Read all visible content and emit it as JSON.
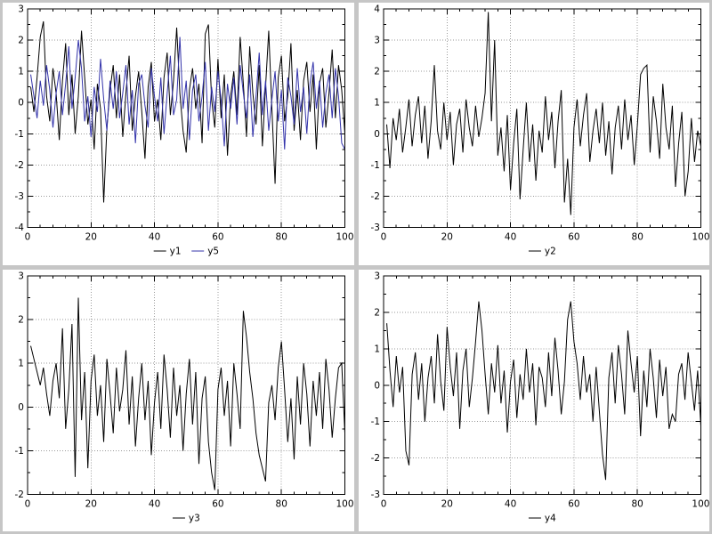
{
  "chart_data": [
    {
      "type": "line",
      "title": "",
      "xlabel": "",
      "ylabel": "",
      "xlim": [
        0,
        100
      ],
      "ylim": [
        -4,
        3
      ],
      "xticks": [
        0,
        20,
        40,
        60,
        80,
        100
      ],
      "yticks": [
        -4,
        -3,
        -2,
        -1,
        0,
        1,
        2,
        3
      ],
      "grid": "dotted",
      "legend_position": "bottom",
      "x": {
        "start": 1,
        "step": 1
      },
      "legend": [
        {
          "label": "y1",
          "color": "#000000"
        },
        {
          "label": "y5",
          "color": "#3333aa"
        }
      ],
      "series": [
        {
          "name": "y1",
          "color": "#000000",
          "values": [
            0.5,
            -0.3,
            0.8,
            2.1,
            2.6,
            0.2,
            -0.6,
            1.1,
            0.3,
            -1.2,
            0.7,
            1.9,
            -0.4,
            0.9,
            -1.0,
            0.2,
            2.3,
            0.8,
            -0.7,
            0.1,
            -1.5,
            0.6,
            -0.2,
            -3.2,
            -0.8,
            0.4,
            1.2,
            -0.5,
            0.9,
            -1.1,
            0.3,
            1.5,
            -0.9,
            0.2,
            1.0,
            -0.3,
            -1.8,
            0.5,
            1.3,
            -0.6,
            0.1,
            -1.2,
            0.8,
            1.6,
            -0.4,
            0.7,
            2.4,
            0.3,
            -0.9,
            -1.6,
            0.4,
            1.1,
            -0.2,
            0.6,
            -1.3,
            2.2,
            2.5,
            0.1,
            -0.8,
            1.4,
            -0.5,
            0.9,
            -1.7,
            0.2,
            1.0,
            -0.4,
            2.1,
            0.6,
            -1.1,
            1.8,
            0.3,
            -0.7,
            1.2,
            -1.4,
            0.5,
            2.3,
            -0.2,
            -2.6,
            0.8,
            1.5,
            -0.6,
            0.2,
            1.9,
            -0.9,
            0.4,
            -1.2,
            0.7,
            1.3,
            -0.3,
            0.9,
            -1.5,
            0.6,
            1.1,
            -0.8,
            0.3,
            1.7,
            -0.5,
            1.2,
            0.4,
            -1.0
          ]
        },
        {
          "name": "y5",
          "color": "#3333aa",
          "values": [
            0.9,
            0.2,
            -0.5,
            0.7,
            -0.1,
            1.2,
            0.4,
            -0.8,
            0.3,
            1.0,
            -0.4,
            0.6,
            1.8,
            -0.2,
            0.8,
            2.0,
            1.1,
            -0.6,
            0.2,
            -1.1,
            0.5,
            -0.3,
            1.4,
            0.1,
            -0.9,
            0.7,
            -0.2,
            1.0,
            -0.5,
            0.3,
            1.2,
            -0.7,
            0.4,
            -1.3,
            0.6,
            0.9,
            -0.1,
            -0.8,
            1.1,
            0.2,
            -0.6,
            0.8,
            -1.0,
            0.3,
            1.5,
            -0.4,
            0.1,
            2.1,
            -0.2,
            0.7,
            -1.2,
            0.4,
            0.9,
            -0.6,
            0.2,
            1.3,
            -0.9,
            0.5,
            -0.3,
            1.0,
            0.1,
            -1.4,
            0.6,
            -0.2,
            0.8,
            -0.7,
            1.2,
            0.3,
            -0.5,
            0.9,
            -1.1,
            0.2,
            1.6,
            -0.4,
            0.7,
            -0.9,
            0.1,
            1.0,
            -0.6,
            0.4,
            -1.5,
            0.8,
            0.2,
            -0.7,
            1.1,
            -0.3,
            0.5,
            -1.0,
            0.6,
            1.3,
            -0.2,
            0.7,
            -0.8,
            0.3,
            0.9,
            -0.5,
            1.1,
            0.2,
            -1.3,
            -1.5
          ]
        }
      ]
    },
    {
      "type": "line",
      "title": "",
      "xlabel": "",
      "ylabel": "",
      "xlim": [
        0,
        100
      ],
      "ylim": [
        -3,
        4
      ],
      "xticks": [
        0,
        20,
        40,
        60,
        80,
        100
      ],
      "yticks": [
        -3,
        -2,
        -1,
        0,
        1,
        2,
        3,
        4
      ],
      "grid": "dotted",
      "legend_position": "bottom",
      "x": {
        "start": 1,
        "step": 1
      },
      "legend": [
        {
          "label": "y2",
          "color": "#000000"
        }
      ],
      "series": [
        {
          "name": "y2",
          "color": "#000000",
          "values": [
            0.3,
            -1.1,
            0.5,
            -0.2,
            0.8,
            -0.6,
            0.2,
            1.1,
            -0.4,
            0.6,
            1.2,
            -0.3,
            0.9,
            -0.8,
            0.4,
            2.2,
            0.1,
            -0.5,
            1.0,
            -0.2,
            0.7,
            -1.0,
            0.3,
            0.8,
            -0.6,
            1.1,
            0.2,
            -0.4,
            0.9,
            -0.1,
            0.5,
            1.3,
            3.9,
            0.4,
            3.0,
            -0.7,
            0.2,
            -1.2,
            0.6,
            -1.8,
            -0.3,
            0.8,
            -2.1,
            -0.5,
            1.0,
            -0.9,
            0.3,
            -1.5,
            0.1,
            -0.6,
            1.2,
            -0.2,
            0.7,
            -1.1,
            0.4,
            1.4,
            -2.2,
            -0.8,
            -2.6,
            0.2,
            1.1,
            -0.4,
            0.6,
            1.3,
            -0.9,
            0.1,
            0.8,
            -0.3,
            1.0,
            -0.7,
            0.4,
            -1.3,
            0.2,
            0.9,
            -0.5,
            1.1,
            -0.2,
            0.6,
            -1.0,
            0.3,
            1.9,
            2.1,
            2.2,
            -0.6,
            1.2,
            0.4,
            -0.8,
            1.6,
            0.2,
            -0.5,
            0.9,
            -1.7,
            -0.3,
            0.7,
            -2.0,
            -1.2,
            0.5,
            -0.9,
            0.1,
            -0.4
          ]
        }
      ]
    },
    {
      "type": "line",
      "title": "",
      "xlabel": "",
      "ylabel": "",
      "xlim": [
        0,
        100
      ],
      "ylim": [
        -2,
        3
      ],
      "xticks": [
        0,
        20,
        40,
        60,
        80,
        100
      ],
      "yticks": [
        -2,
        -1,
        0,
        1,
        2,
        3
      ],
      "grid": "dotted",
      "legend_position": "bottom",
      "x": {
        "start": 1,
        "step": 1
      },
      "legend": [
        {
          "label": "y3",
          "color": "#000000"
        }
      ],
      "series": [
        {
          "name": "y3",
          "color": "#000000",
          "values": [
            1.4,
            1.1,
            0.8,
            0.5,
            0.9,
            0.3,
            -0.2,
            0.6,
            1.0,
            0.2,
            1.8,
            -0.5,
            0.4,
            1.9,
            -1.6,
            2.5,
            -0.3,
            0.8,
            -1.4,
            0.6,
            1.2,
            -0.2,
            0.5,
            -0.8,
            1.1,
            0.3,
            -0.6,
            0.9,
            -0.1,
            0.4,
            1.3,
            -0.4,
            0.7,
            -0.9,
            0.2,
            1.0,
            -0.3,
            0.6,
            -1.1,
            0.1,
            0.8,
            -0.5,
            1.2,
            0.4,
            -0.7,
            0.9,
            -0.2,
            0.5,
            -1.0,
            0.3,
            1.1,
            -0.4,
            0.8,
            -1.3,
            0.2,
            0.7,
            -0.8,
            -1.5,
            -1.9,
            0.4,
            0.9,
            -0.2,
            0.6,
            -0.9,
            1.0,
            0.3,
            -0.5,
            2.2,
            1.6,
            0.8,
            0.2,
            -0.6,
            -1.1,
            -1.4,
            -1.7,
            0.1,
            0.5,
            -0.3,
            0.9,
            1.5,
            0.4,
            -0.8,
            0.2,
            -1.2,
            0.7,
            -0.4,
            1.0,
            0.3,
            -0.9,
            0.6,
            -0.2,
            0.8,
            -0.5,
            1.1,
            0.4,
            -0.7,
            0.2,
            0.9,
            1.0,
            -0.6
          ]
        }
      ]
    },
    {
      "type": "line",
      "title": "",
      "xlabel": "",
      "ylabel": "",
      "xlim": [
        0,
        100
      ],
      "ylim": [
        -3,
        3
      ],
      "xticks": [
        0,
        20,
        40,
        60,
        80,
        100
      ],
      "yticks": [
        -3,
        -2,
        -1,
        0,
        1,
        2,
        3
      ],
      "grid": "dotted",
      "legend_position": "bottom",
      "x": {
        "start": 1,
        "step": 1
      },
      "legend": [
        {
          "label": "y4",
          "color": "#000000"
        }
      ],
      "series": [
        {
          "name": "y4",
          "color": "#000000",
          "values": [
            1.7,
            0.4,
            -0.6,
            0.8,
            -0.2,
            0.5,
            -1.8,
            -2.2,
            0.3,
            0.9,
            -0.4,
            0.6,
            -1.0,
            0.2,
            0.8,
            -0.5,
            1.4,
            0.1,
            -0.7,
            1.6,
            0.5,
            -0.3,
            0.9,
            -1.2,
            0.4,
            1.0,
            -0.6,
            0.2,
            1.2,
            2.3,
            1.5,
            0.3,
            -0.8,
            0.6,
            -0.2,
            1.1,
            -0.5,
            0.4,
            -1.3,
            0.1,
            0.7,
            -0.9,
            0.3,
            -0.4,
            1.0,
            -0.2,
            0.6,
            -1.1,
            0.5,
            0.2,
            -0.6,
            0.9,
            -0.3,
            1.3,
            0.4,
            -0.8,
            0.1,
            1.8,
            2.3,
            1.2,
            0.6,
            -0.4,
            0.8,
            -0.2,
            0.3,
            -1.0,
            0.5,
            -0.7,
            -1.9,
            -2.6,
            0.2,
            0.9,
            -0.5,
            1.1,
            0.3,
            -0.8,
            1.5,
            0.6,
            -0.2,
            0.8,
            -1.4,
            0.4,
            -0.6,
            1.0,
            0.2,
            -0.9,
            0.7,
            -0.3,
            0.5,
            -1.2,
            -0.8,
            -1.0,
            0.3,
            0.6,
            -0.4,
            0.9,
            0.1,
            -0.7,
            0.4,
            -1.1
          ]
        }
      ]
    }
  ],
  "colors": {
    "background": "#c6c6c6",
    "plot_background": "#ffffff",
    "axis": "#000000",
    "grid": "#9a9a9a",
    "series_black": "#000000",
    "series_blue": "#3333aa"
  }
}
